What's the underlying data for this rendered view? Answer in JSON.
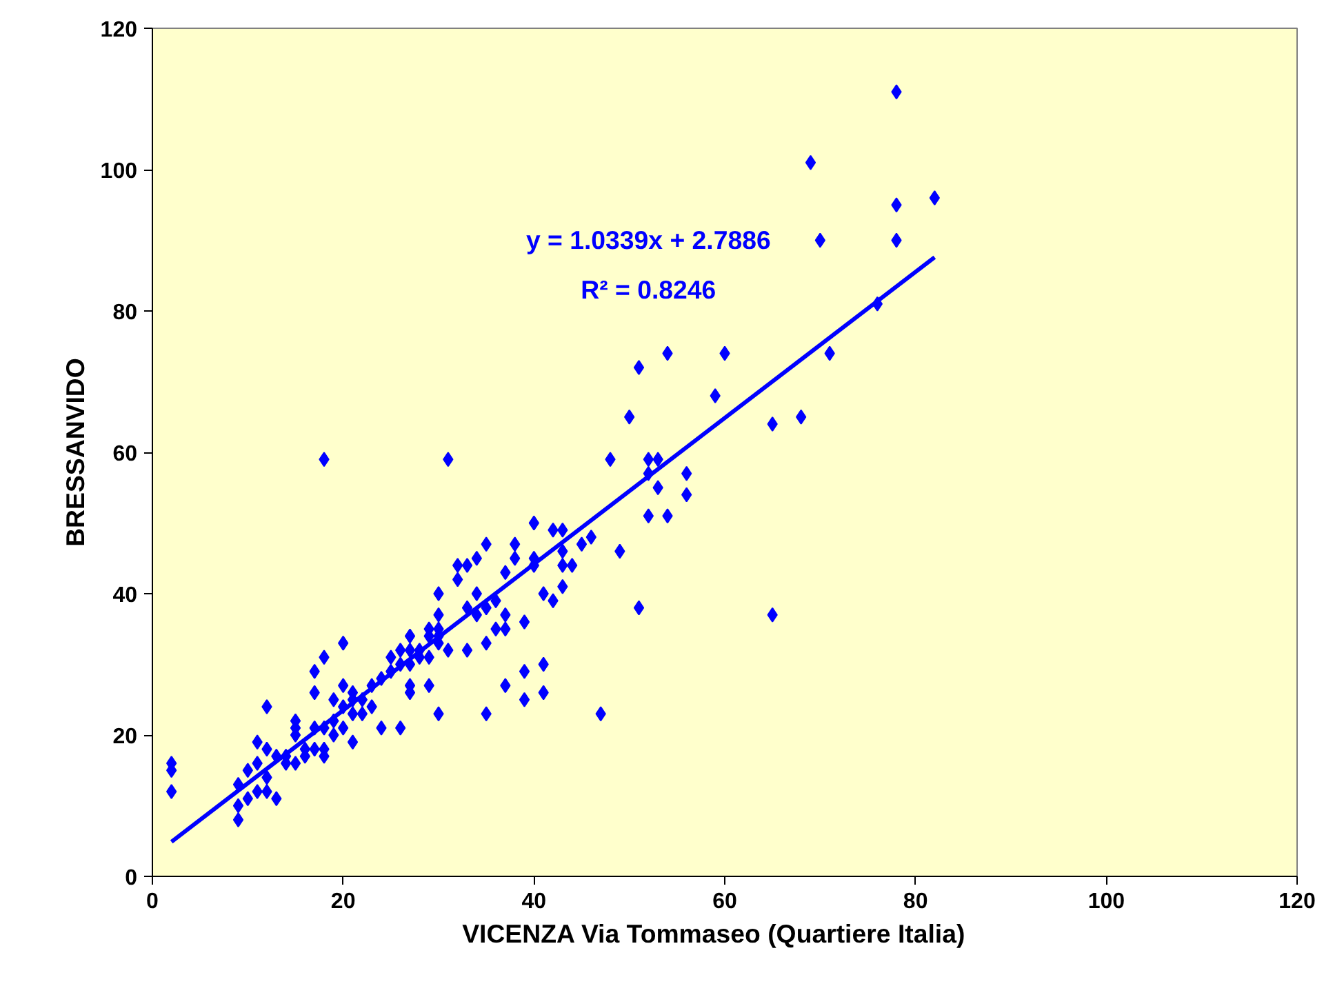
{
  "chart_data": {
    "type": "scatter",
    "xlabel": "VICENZA    Via Tommaseo (Quartiere Italia)",
    "ylabel": "BRESSANVIDO",
    "xlim": [
      0,
      120
    ],
    "ylim": [
      0,
      120
    ],
    "xticks": [
      0,
      20,
      40,
      60,
      80,
      100,
      120
    ],
    "yticks": [
      0,
      20,
      40,
      60,
      80,
      100,
      120
    ],
    "grid": false,
    "annotations": [
      "y = 1.0339x + 2.7886",
      "R² = 0.8246"
    ],
    "series": [
      {
        "color": "#0000ff",
        "marker": "diamond",
        "x": [
          2,
          2,
          2,
          9,
          9,
          9,
          10,
          10,
          11,
          11,
          11,
          12,
          12,
          12,
          12,
          13,
          13,
          14,
          14,
          15,
          15,
          15,
          15,
          16,
          16,
          17,
          17,
          17,
          17,
          18,
          18,
          18,
          18,
          18,
          19,
          19,
          19,
          20,
          20,
          20,
          20,
          21,
          21,
          21,
          21,
          22,
          22,
          23,
          23,
          24,
          24,
          25,
          25,
          26,
          26,
          26,
          27,
          27,
          27,
          27,
          27,
          28,
          28,
          29,
          29,
          29,
          29,
          30,
          30,
          30,
          30,
          30,
          30,
          31,
          31,
          32,
          32,
          33,
          33,
          33,
          34,
          34,
          34,
          35,
          35,
          35,
          35,
          36,
          36,
          37,
          37,
          37,
          37,
          38,
          38,
          39,
          39,
          39,
          40,
          40,
          40,
          41,
          41,
          41,
          42,
          42,
          43,
          43,
          43,
          43,
          44,
          45,
          46,
          47,
          48,
          49,
          50,
          51,
          51,
          52,
          52,
          52,
          53,
          53,
          54,
          54,
          56,
          56,
          59,
          60,
          65,
          65,
          68,
          69,
          70,
          71,
          76,
          78,
          78,
          78,
          82
        ],
        "values": [
          16,
          15,
          12,
          8,
          10,
          13,
          11,
          15,
          12,
          16,
          19,
          12,
          14,
          18,
          24,
          11,
          17,
          16,
          17,
          16,
          20,
          21,
          22,
          17,
          18,
          18,
          21,
          26,
          29,
          17,
          18,
          21,
          31,
          59,
          20,
          22,
          25,
          21,
          24,
          27,
          33,
          19,
          23,
          25,
          26,
          23,
          25,
          24,
          27,
          21,
          28,
          29,
          31,
          21,
          30,
          32,
          26,
          27,
          30,
          32,
          34,
          31,
          32,
          27,
          31,
          34,
          35,
          23,
          33,
          34,
          35,
          37,
          40,
          32,
          59,
          42,
          44,
          32,
          38,
          44,
          37,
          40,
          45,
          23,
          33,
          38,
          47,
          35,
          39,
          27,
          35,
          37,
          43,
          45,
          47,
          25,
          29,
          36,
          44,
          45,
          50,
          26,
          30,
          40,
          39,
          49,
          41,
          44,
          46,
          49,
          44,
          47,
          48,
          23,
          59,
          46,
          65,
          38,
          72,
          51,
          57,
          59,
          55,
          59,
          51,
          74,
          54,
          57,
          68,
          74,
          37,
          64,
          65,
          101,
          90,
          74,
          81,
          90,
          95,
          111,
          96
        ]
      },
      {
        "type": "line",
        "color": "#0000ff",
        "x": [
          2,
          82
        ],
        "values": [
          4.9,
          87.6
        ],
        "marker": "none",
        "line_style": "solid"
      }
    ]
  }
}
